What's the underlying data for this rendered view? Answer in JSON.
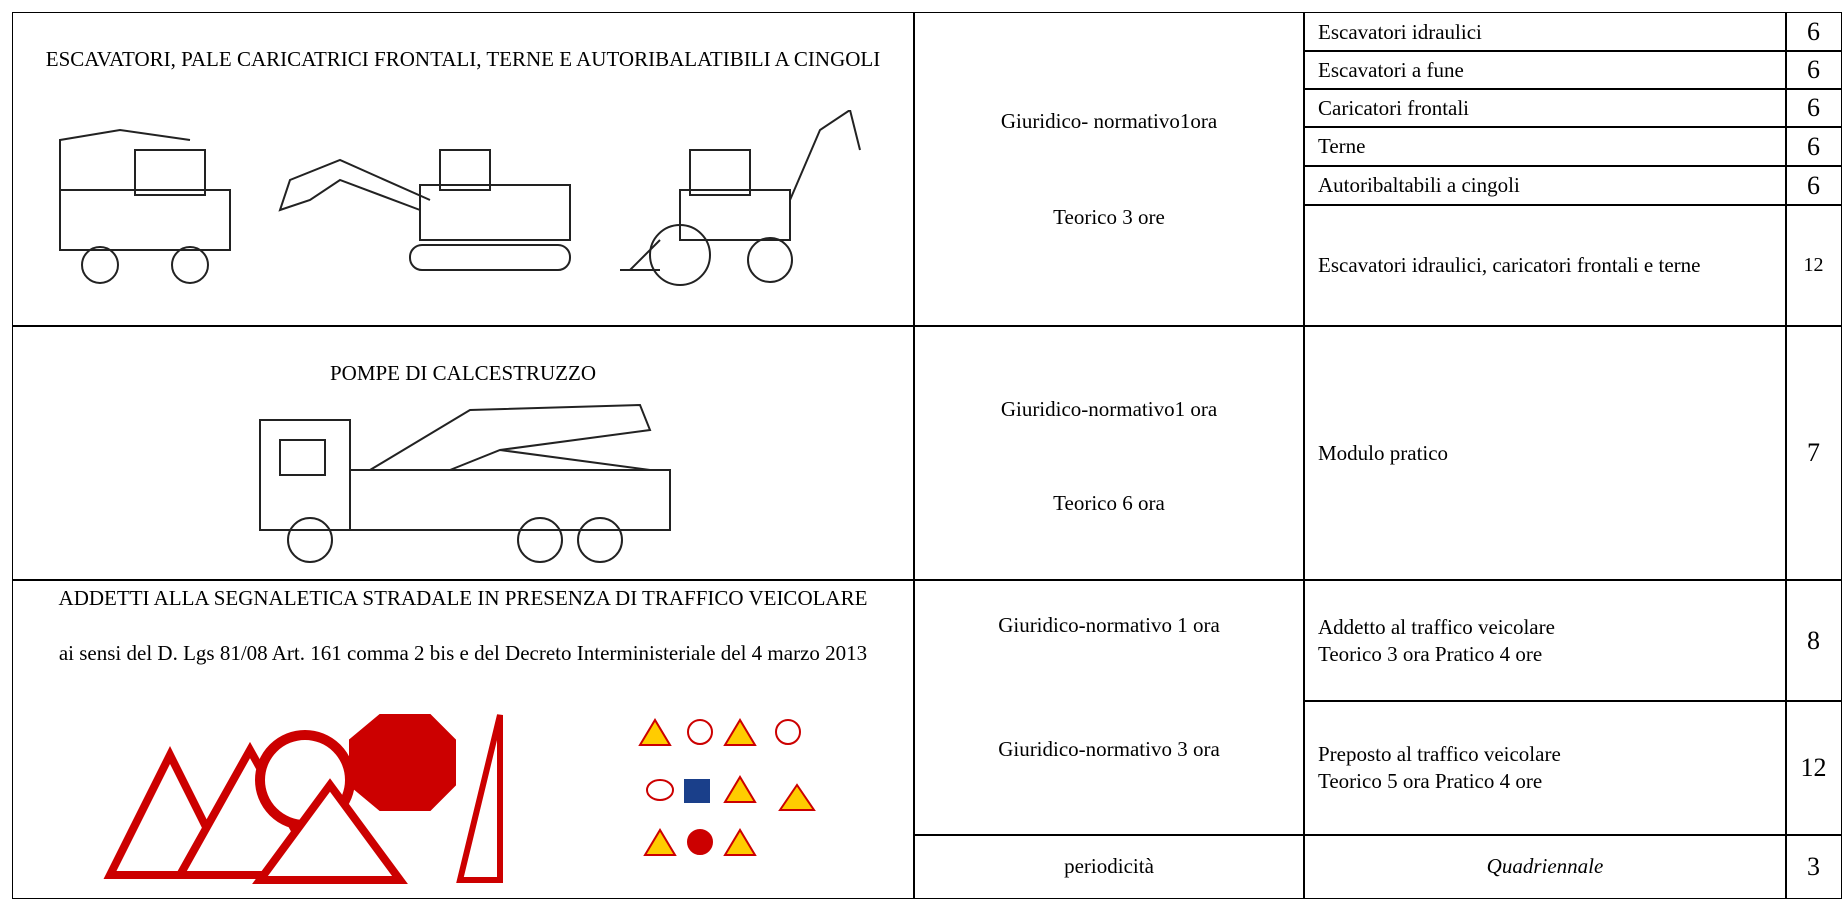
{
  "rows": [
    {
      "title": "ESCAVATORI, PALE CARICATRICI FRONTALI, TERNE E AUTORIBALATIBILI A CINGOLI",
      "modules": [
        "Giuridico- normativo1ora",
        "Teorico 3 ore"
      ],
      "courses": [
        {
          "name": "Escavatori idraulici",
          "hours": 6
        },
        {
          "name": "Escavatori a fune",
          "hours": 6
        },
        {
          "name": "Caricatori frontali",
          "hours": 6
        },
        {
          "name": "Terne",
          "hours": 6
        },
        {
          "name": "Autoribaltabili a cingoli",
          "hours": 6
        },
        {
          "name": "Escavatori idraulici, caricatori frontali e terne",
          "hours": 12
        }
      ]
    },
    {
      "title": "POMPE DI CALCESTRUZZO",
      "modules": [
        "Giuridico-normativo1 ora",
        "Teorico 6 ora"
      ],
      "courses": [
        {
          "name": "Modulo pratico",
          "hours": 7
        }
      ]
    },
    {
      "title": "ADDETTI ALLA SEGNALETICA STRADALE IN PRESENZA DI TRAFFICO VEICOLARE",
      "subtitle": "ai sensi del D. Lgs 81/08 Art. 161 comma 2 bis e del Decreto Interministeriale del 4 marzo 2013",
      "modules": [
        "Giuridico-normativo 1 ora",
        "Giuridico-normativo 3 ora"
      ],
      "courses": [
        {
          "name": "Addetto al traffico veicolare",
          "detail": "Teorico 3 ora Pratico 4 ore",
          "hours": 8
        },
        {
          "name": "Preposto al traffico veicolare",
          "detail": "Teorico 5 ora Pratico 4 ore",
          "hours": 12
        }
      ]
    }
  ],
  "periodic": {
    "label": "periodicità",
    "value": "Quadriennale",
    "hours": 3
  }
}
